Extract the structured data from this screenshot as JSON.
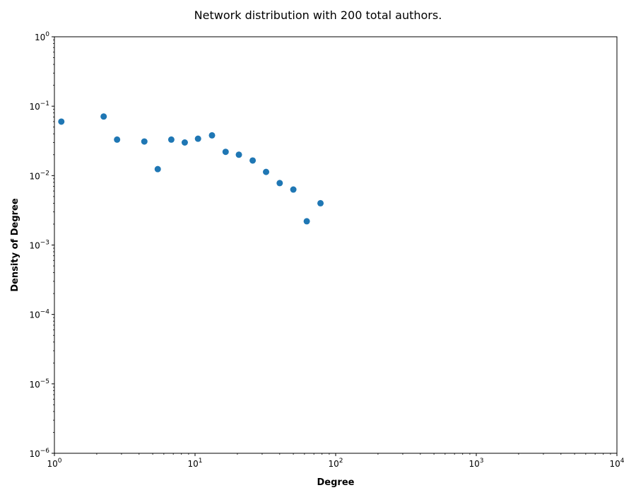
{
  "chart_data": {
    "type": "scatter",
    "title": "Network distribution with 200 total authors.",
    "xlabel": "Degree",
    "ylabel": "Density of Degree",
    "xscale": "log",
    "yscale": "log",
    "xlim": [
      1,
      10000
    ],
    "ylim": [
      1e-06,
      1
    ],
    "grid": false,
    "marker_color": "#1f77b4",
    "x_ticks": [
      {
        "value": 1,
        "base": "10",
        "exp": "0"
      },
      {
        "value": 10,
        "base": "10",
        "exp": "1"
      },
      {
        "value": 100,
        "base": "10",
        "exp": "2"
      },
      {
        "value": 1000,
        "base": "10",
        "exp": "3"
      },
      {
        "value": 10000,
        "base": "10",
        "exp": "4"
      }
    ],
    "y_ticks": [
      {
        "value": 1e-06,
        "base": "10",
        "exp": "−6"
      },
      {
        "value": 1e-05,
        "base": "10",
        "exp": "−5"
      },
      {
        "value": 0.0001,
        "base": "10",
        "exp": "−4"
      },
      {
        "value": 0.001,
        "base": "10",
        "exp": "−3"
      },
      {
        "value": 0.01,
        "base": "10",
        "exp": "−2"
      },
      {
        "value": 0.1,
        "base": "10",
        "exp": "−1"
      },
      {
        "value": 1,
        "base": "10",
        "exp": "0"
      }
    ],
    "points": [
      {
        "x": 1.12,
        "y": 0.06
      },
      {
        "x": 2.24,
        "y": 0.071
      },
      {
        "x": 2.79,
        "y": 0.033
      },
      {
        "x": 4.36,
        "y": 0.031
      },
      {
        "x": 5.43,
        "y": 0.0124
      },
      {
        "x": 6.78,
        "y": 0.033
      },
      {
        "x": 8.45,
        "y": 0.03
      },
      {
        "x": 10.5,
        "y": 0.034
      },
      {
        "x": 13.2,
        "y": 0.038
      },
      {
        "x": 16.5,
        "y": 0.022
      },
      {
        "x": 20.5,
        "y": 0.02
      },
      {
        "x": 25.7,
        "y": 0.0165
      },
      {
        "x": 32.0,
        "y": 0.0113
      },
      {
        "x": 40.0,
        "y": 0.0078
      },
      {
        "x": 50.0,
        "y": 0.0063
      },
      {
        "x": 62.3,
        "y": 0.0022
      },
      {
        "x": 78.0,
        "y": 0.004
      }
    ]
  }
}
